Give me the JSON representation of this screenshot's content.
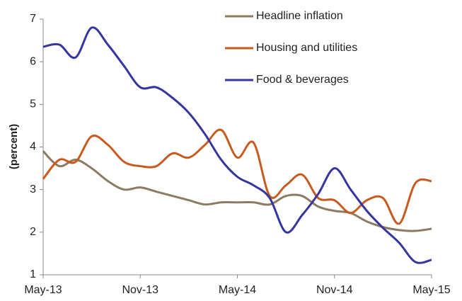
{
  "chart_data": {
    "type": "line",
    "y_label": "(percent)",
    "categories": [
      "May-13",
      null,
      null,
      null,
      null,
      null,
      "Nov-13",
      null,
      null,
      null,
      null,
      null,
      "May-14",
      null,
      null,
      null,
      null,
      null,
      "Nov-14",
      null,
      null,
      null,
      null,
      null,
      "May-15"
    ],
    "series": [
      {
        "name": "Headline inflation",
        "color": "#8c7b62",
        "values": [
          3.9,
          3.55,
          3.7,
          3.5,
          3.2,
          3.0,
          3.05,
          2.95,
          2.85,
          2.75,
          2.65,
          2.7,
          2.7,
          2.7,
          2.65,
          2.85,
          2.85,
          2.6,
          2.5,
          2.45,
          2.25,
          2.12,
          2.05,
          2.03,
          2.08
        ]
      },
      {
        "name": "Housing and utilities",
        "color": "#c85a1e",
        "values": [
          3.25,
          3.7,
          3.65,
          4.25,
          4.05,
          3.65,
          3.55,
          3.55,
          3.85,
          3.75,
          4.05,
          4.4,
          3.75,
          4.1,
          2.85,
          3.1,
          3.35,
          2.8,
          2.75,
          2.45,
          2.75,
          2.8,
          2.2,
          3.15,
          3.2
        ]
      },
      {
        "name": "Food & beverages",
        "color": "#3535a0",
        "values": [
          6.35,
          6.4,
          6.1,
          6.8,
          6.4,
          5.9,
          5.4,
          5.4,
          5.15,
          4.8,
          4.3,
          3.7,
          3.3,
          3.1,
          2.8,
          2.0,
          2.4,
          2.9,
          3.5,
          3.0,
          2.5,
          2.1,
          1.75,
          1.3,
          1.35
        ]
      }
    ],
    "ylim": [
      1,
      7
    ],
    "yticks": [
      1,
      2,
      3,
      4,
      5,
      6,
      7
    ],
    "grid": false,
    "legend": "top-right"
  }
}
